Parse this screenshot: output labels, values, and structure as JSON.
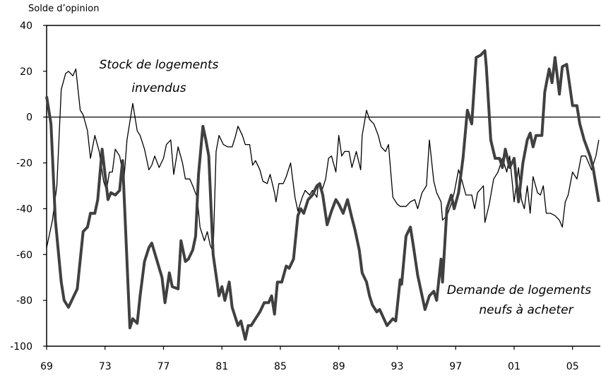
{
  "chart_data": {
    "type": "line",
    "y_axis_label": "Solde d’opinion",
    "xlim": [
      1969,
      2006.9
    ],
    "xticks": [
      {
        "value": 1969,
        "label": "69"
      },
      {
        "value": 1973,
        "label": "73"
      },
      {
        "value": 1977,
        "label": "77"
      },
      {
        "value": 1981,
        "label": "81"
      },
      {
        "value": 1985,
        "label": "85"
      },
      {
        "value": 1989,
        "label": "89"
      },
      {
        "value": 1993,
        "label": "93"
      },
      {
        "value": 1997,
        "label": "97"
      },
      {
        "value": 2001,
        "label": "01"
      },
      {
        "value": 2005,
        "label": "05"
      }
    ],
    "ylim": [
      -100,
      40
    ],
    "yticks": [
      -100,
      -80,
      -60,
      -40,
      -20,
      0,
      20,
      40
    ],
    "zero_line": true,
    "series": [
      {
        "name": "Stock de logements invendus",
        "label_lines": [
          "Stock de logements",
          "invendus"
        ],
        "color": "#000000",
        "width": 1.3,
        "x": [
          1969.0,
          1969.4,
          1969.7,
          1970.0,
          1970.3,
          1970.5,
          1970.8,
          1971.0,
          1971.3,
          1971.5,
          1971.8,
          1972.0,
          1972.3,
          1972.6,
          1972.9,
          1973.1,
          1973.3,
          1973.5,
          1973.7,
          1974.0,
          1974.3,
          1974.5,
          1974.9,
          1975.2,
          1975.4,
          1975.7,
          1976.0,
          1976.2,
          1976.4,
          1976.7,
          1977.0,
          1977.2,
          1977.5,
          1977.7,
          1978.0,
          1978.3,
          1978.5,
          1978.8,
          1979.0,
          1979.3,
          1979.5,
          1979.8,
          1980.0,
          1980.2,
          1980.4,
          1980.6,
          1980.8,
          1981.1,
          1981.4,
          1981.7,
          1981.9,
          1982.1,
          1982.4,
          1982.6,
          1982.9,
          1983.1,
          1983.3,
          1983.6,
          1983.8,
          1984.1,
          1984.3,
          1984.6,
          1984.7,
          1984.9,
          1985.2,
          1985.4,
          1985.7,
          1986.0,
          1986.2,
          1986.5,
          1986.7,
          1987.0,
          1987.2,
          1987.5,
          1987.6,
          1987.8,
          1988.1,
          1988.3,
          1988.5,
          1988.8,
          1989.0,
          1989.2,
          1989.4,
          1989.7,
          1989.9,
          1990.2,
          1990.5,
          1990.6,
          1990.9,
          1991.1,
          1991.4,
          1991.7,
          1991.9,
          1992.2,
          1992.4,
          1992.7,
          1993.0,
          1993.2,
          1993.6,
          1993.9,
          1994.2,
          1994.4,
          1994.7,
          1995.0,
          1995.2,
          1995.5,
          1995.7,
          1996.0,
          1996.1,
          1996.4,
          1996.7,
          1996.9,
          1997.2,
          1997.4,
          1997.7,
          1998.1,
          1998.3,
          1998.5,
          1998.9,
          1999.0,
          1999.3,
          1999.6,
          1999.9,
          2000.2,
          2000.5,
          2000.7,
          2001.0,
          2001.3,
          2001.5,
          2001.7,
          2001.9,
          2002.1,
          2002.3,
          2002.6,
          2002.8,
          2003.0,
          2003.2,
          2003.5,
          2003.8,
          2004.1,
          2004.3,
          2004.5,
          2004.7,
          2005.0,
          2005.3,
          2005.6,
          2005.9,
          2006.3,
          2006.6,
          2006.8
        ],
        "values": [
          -57,
          -45,
          -30,
          12,
          19,
          20,
          18,
          21,
          3,
          1,
          -6,
          -18,
          -8,
          -15,
          -28,
          -32,
          -24,
          -24,
          -14,
          -17,
          -27,
          -10,
          6,
          -6,
          -8,
          -14,
          -23,
          -21,
          -17,
          -22,
          -18,
          -12,
          -10,
          -25,
          -13,
          -20,
          -27,
          -27,
          -30,
          -35,
          -48,
          -54,
          -50,
          -56,
          -59,
          -15,
          -8,
          -12,
          -13,
          -13,
          -9,
          -4,
          -8,
          -12,
          -12,
          -21,
          -19,
          -23,
          -28,
          -29,
          -25,
          -33,
          -37,
          -29,
          -29,
          -26,
          -20,
          -35,
          -41,
          -35,
          -32,
          -34,
          -32,
          -35,
          -29,
          -33,
          -27,
          -18,
          -17,
          -24,
          -8,
          -17,
          -15,
          -15,
          -22,
          -15,
          -23,
          -8,
          3,
          -1,
          -3,
          -8,
          -13,
          -15,
          -12,
          -35,
          -38,
          -39,
          -39,
          -37,
          -36,
          -40,
          -33,
          -30,
          -10,
          -28,
          -33,
          -37,
          -45,
          -43,
          -38,
          -33,
          -23,
          -27,
          -34,
          -34,
          -40,
          -33,
          -30,
          -46,
          -38,
          -27,
          -24,
          -18,
          -24,
          -17,
          -37,
          -22,
          -36,
          -40,
          -30,
          -42,
          -26,
          -33,
          -34,
          -30,
          -42,
          -42,
          -43,
          -45,
          -48,
          -37,
          -34,
          -24,
          -27,
          -17,
          -17,
          -23,
          -17,
          -10
        ]
      },
      {
        "name": "Demande de logements neufs à acheter",
        "label_lines": [
          "Demande de logements",
          "neufs à acheter"
        ],
        "color": "#404040",
        "width": 4,
        "x": [
          1969.0,
          1969.3,
          1969.6,
          1970.0,
          1970.2,
          1970.5,
          1971.1,
          1971.5,
          1971.8,
          1972.0,
          1972.3,
          1972.5,
          1972.8,
          1973.2,
          1973.4,
          1973.7,
          1974.0,
          1974.2,
          1974.7,
          1974.9,
          1975.2,
          1975.4,
          1975.7,
          1976.0,
          1976.2,
          1976.9,
          1977.1,
          1977.4,
          1977.6,
          1978.0,
          1978.2,
          1978.5,
          1978.7,
          1979.0,
          1979.2,
          1979.4,
          1979.7,
          1979.9,
          1980.1,
          1980.4,
          1980.8,
          1981.0,
          1981.2,
          1981.5,
          1981.7,
          1981.9,
          1982.1,
          1982.3,
          1982.6,
          1982.8,
          1983.0,
          1983.3,
          1983.6,
          1983.9,
          1984.2,
          1984.4,
          1984.6,
          1984.8,
          1985.1,
          1985.4,
          1985.6,
          1985.9,
          1986.2,
          1986.4,
          1986.6,
          1986.9,
          1987.2,
          1987.5,
          1987.7,
          1987.9,
          1988.2,
          1988.5,
          1988.8,
          1989.0,
          1989.3,
          1989.6,
          1989.9,
          1990.1,
          1990.4,
          1990.6,
          1990.9,
          1991.1,
          1991.3,
          1991.6,
          1991.8,
          1992.3,
          1992.7,
          1992.9,
          1993.2,
          1993.3,
          1993.6,
          1993.9,
          1994.1,
          1994.4,
          1994.9,
          1995.2,
          1995.5,
          1995.7,
          1996.0,
          1996.1,
          1996.4,
          1996.7,
          1996.9,
          1997.2,
          1997.5,
          1997.8,
          1998.1,
          1998.4,
          1998.7,
          1999.0,
          1999.1,
          1999.4,
          1999.7,
          2000.0,
          2000.2,
          2000.4,
          2000.7,
          2001.0,
          2001.3,
          2001.6,
          2001.9,
          2002.1,
          2002.3,
          2002.5,
          2002.9,
          2003.1,
          2003.4,
          2003.6,
          2003.8,
          2004.1,
          2004.3,
          2004.6,
          2004.8,
          2005.0,
          2005.3,
          2005.5,
          2005.8,
          2006.2,
          2006.4,
          2006.8
        ],
        "values": [
          9,
          -3,
          -45,
          -72,
          -80,
          -83,
          -75,
          -50,
          -48,
          -42,
          -42,
          -36,
          -14,
          -36,
          -33,
          -34,
          -32,
          -19,
          -92,
          -88,
          -90,
          -78,
          -63,
          -57,
          -55,
          -70,
          -81,
          -68,
          -74,
          -75,
          -54,
          -63,
          -62,
          -58,
          -52,
          -25,
          -4,
          -10,
          -17,
          -60,
          -78,
          -74,
          -80,
          -72,
          -83,
          -87,
          -91,
          -89,
          -97,
          -91,
          -91,
          -88,
          -85,
          -81,
          -81,
          -78,
          -86,
          -72,
          -72,
          -65,
          -66,
          -62,
          -43,
          -40,
          -42,
          -36,
          -34,
          -30,
          -29,
          -34,
          -47,
          -41,
          -36,
          -38,
          -42,
          -36,
          -44,
          -49,
          -58,
          -68,
          -72,
          -78,
          -82,
          -85,
          -84,
          -91,
          -88,
          -89,
          -71,
          -73,
          -52,
          -48,
          -56,
          -69,
          -84,
          -78,
          -76,
          -80,
          -62,
          -72,
          -40,
          -34,
          -40,
          -33,
          -18,
          3,
          -3,
          26,
          27,
          29,
          22,
          -10,
          -18,
          -18,
          -22,
          -14,
          -22,
          -18,
          -37,
          -20,
          -10,
          -7,
          -13,
          -8,
          -8,
          11,
          21,
          15,
          26,
          10,
          22,
          23,
          14,
          5,
          5,
          -3,
          -10,
          -17,
          -22,
          -37
        ]
      }
    ]
  }
}
